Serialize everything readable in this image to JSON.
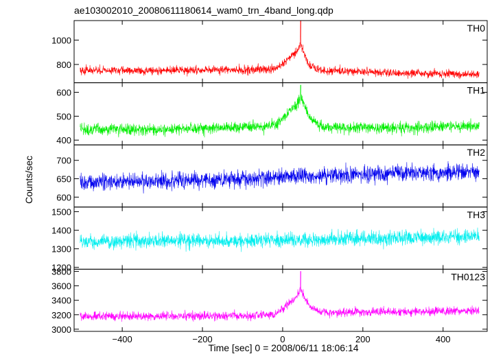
{
  "chart_data": {
    "type": "line",
    "title": "ae103002010_20080611180614_wam0_trn_4band_long.qdp",
    "xlabel": "Time [sec] 0 = 2008/06/11 18:06:14",
    "ylabel": "Counts/sec",
    "xlim": [
      -520,
      510
    ],
    "x_ticks": [
      -400,
      -200,
      0,
      200,
      400
    ],
    "x_tick_labels": [
      "−400",
      "−200",
      "0",
      "200",
      "400"
    ],
    "data_range": [
      -505,
      490
    ],
    "grid": false,
    "panels": [
      {
        "name": "TH0",
        "color": "#ff0000",
        "ylim": [
          650,
          1160
        ],
        "y_ticks": [
          800,
          1000
        ],
        "baseline": [
          {
            "x": -505,
            "y": 750
          },
          {
            "x": -300,
            "y": 750
          },
          {
            "x": -100,
            "y": 755
          },
          {
            "x": -20,
            "y": 760
          },
          {
            "x": 0,
            "y": 800
          },
          {
            "x": 20,
            "y": 860
          },
          {
            "x": 35,
            "y": 900
          },
          {
            "x": 45,
            "y": 960
          },
          {
            "x": 55,
            "y": 880
          },
          {
            "x": 65,
            "y": 800
          },
          {
            "x": 90,
            "y": 750
          },
          {
            "x": 300,
            "y": 730
          },
          {
            "x": 490,
            "y": 720
          }
        ],
        "noise": 28,
        "peak": {
          "x": 45,
          "y": 1160
        }
      },
      {
        "name": "TH1",
        "color": "#00ee00",
        "ylim": [
          380,
          640
        ],
        "y_ticks": [
          400,
          500,
          600
        ],
        "baseline": [
          {
            "x": -505,
            "y": 445
          },
          {
            "x": -300,
            "y": 445
          },
          {
            "x": -100,
            "y": 455
          },
          {
            "x": -20,
            "y": 460
          },
          {
            "x": 0,
            "y": 490
          },
          {
            "x": 20,
            "y": 525
          },
          {
            "x": 35,
            "y": 545
          },
          {
            "x": 45,
            "y": 580
          },
          {
            "x": 55,
            "y": 545
          },
          {
            "x": 70,
            "y": 490
          },
          {
            "x": 100,
            "y": 455
          },
          {
            "x": 300,
            "y": 450
          },
          {
            "x": 490,
            "y": 460
          }
        ],
        "noise": 20,
        "peak": {
          "x": 45,
          "y": 630
        }
      },
      {
        "name": "TH2",
        "color": "#0000ee",
        "ylim": [
          573,
          742
        ],
        "y_ticks": [
          600,
          650,
          700
        ],
        "baseline": [
          {
            "x": -505,
            "y": 640
          },
          {
            "x": -200,
            "y": 645
          },
          {
            "x": 0,
            "y": 655
          },
          {
            "x": 200,
            "y": 662
          },
          {
            "x": 490,
            "y": 668
          }
        ],
        "noise": 19,
        "peak": null
      },
      {
        "name": "TH3",
        "color": "#00eeee",
        "ylim": [
          1190,
          1525
        ],
        "y_ticks": [
          1200,
          1300,
          1400,
          1500
        ],
        "baseline": [
          {
            "x": -505,
            "y": 1340
          },
          {
            "x": -200,
            "y": 1342
          },
          {
            "x": 0,
            "y": 1345
          },
          {
            "x": 200,
            "y": 1355
          },
          {
            "x": 490,
            "y": 1365
          }
        ],
        "noise": 32,
        "peak": null
      },
      {
        "name": "TH0123",
        "color": "#ff00ff",
        "ylim": [
          2970,
          3830
        ],
        "y_ticks": [
          3000,
          3200,
          3400,
          3600,
          3800
        ],
        "baseline": [
          {
            "x": -505,
            "y": 3180
          },
          {
            "x": -300,
            "y": 3180
          },
          {
            "x": -100,
            "y": 3190
          },
          {
            "x": -20,
            "y": 3200
          },
          {
            "x": 0,
            "y": 3280
          },
          {
            "x": 20,
            "y": 3380
          },
          {
            "x": 35,
            "y": 3440
          },
          {
            "x": 45,
            "y": 3560
          },
          {
            "x": 55,
            "y": 3440
          },
          {
            "x": 70,
            "y": 3300
          },
          {
            "x": 100,
            "y": 3230
          },
          {
            "x": 300,
            "y": 3240
          },
          {
            "x": 490,
            "y": 3260
          }
        ],
        "noise": 50,
        "peak": {
          "x": 45,
          "y": 3800
        }
      }
    ]
  }
}
